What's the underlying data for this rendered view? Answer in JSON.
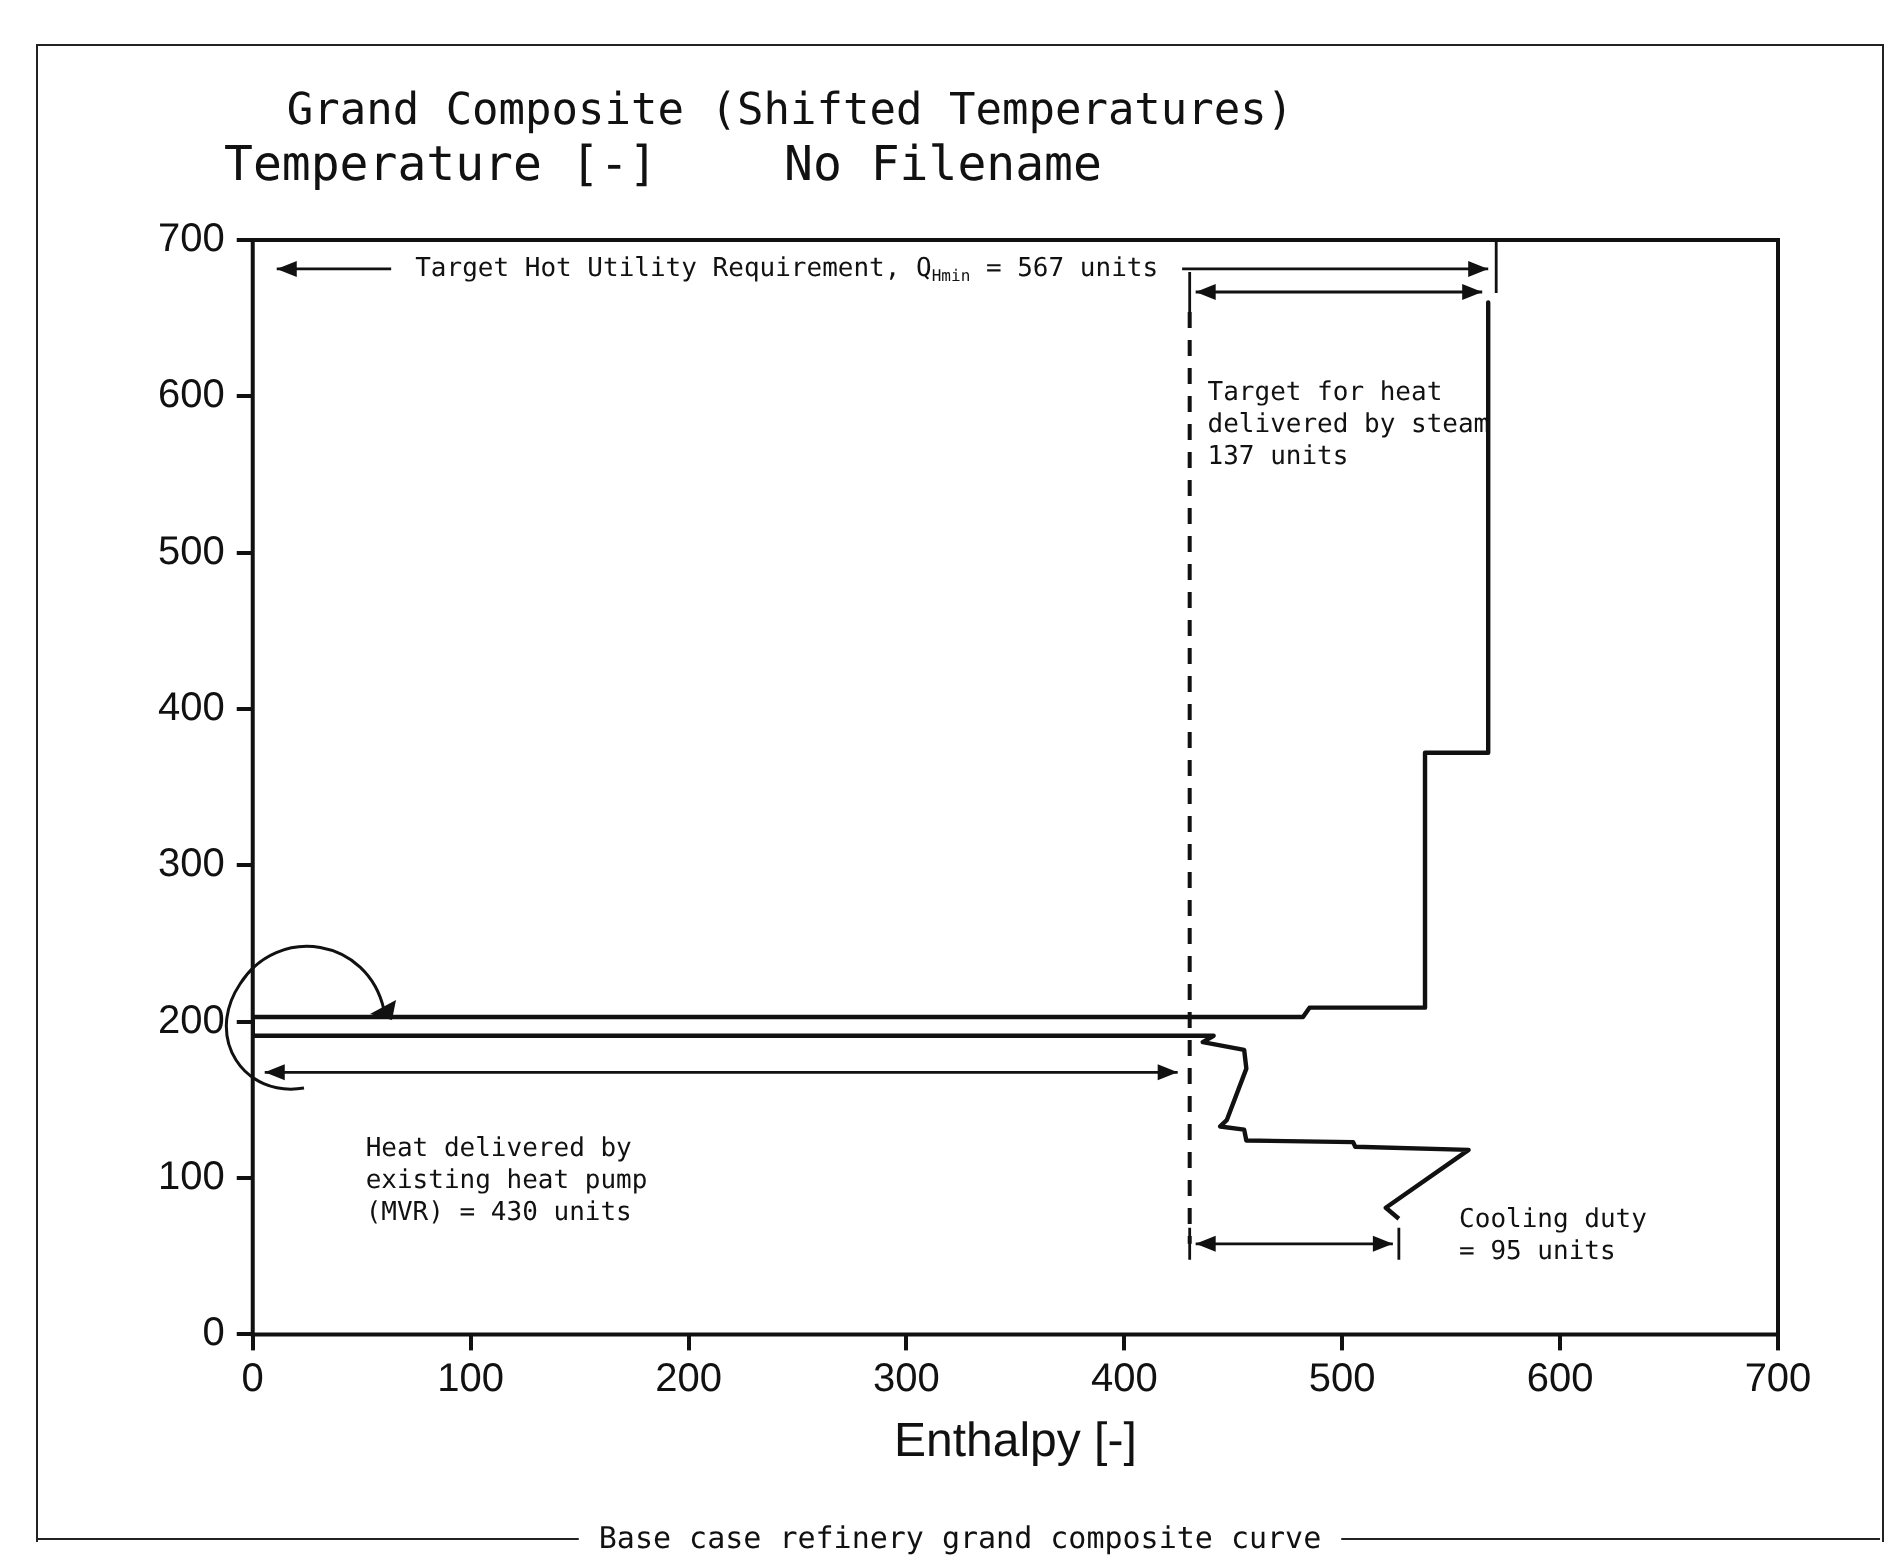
{
  "chart_data": {
    "type": "line",
    "title": "Grand Composite (Shifted Temperatures)",
    "subtitle": "No Filename",
    "xlabel": "Enthalpy [-]",
    "ylabel": "Temperature [-]",
    "xlim": [
      0,
      700
    ],
    "xticks": [
      0,
      100,
      200,
      300,
      400,
      500,
      600,
      700
    ],
    "ylim": [
      0,
      700
    ],
    "yticks": [
      0,
      100,
      200,
      300,
      400,
      500,
      600,
      700
    ],
    "marker": "none",
    "line_style": "solid",
    "series": [
      {
        "color": "#111111",
        "x": [
          567,
          567,
          538,
          538,
          485,
          482,
          0,
          0,
          441,
          436,
          455,
          456,
          447,
          444,
          455,
          456,
          505,
          506,
          558,
          520,
          526
        ],
        "values": [
          660,
          372,
          372,
          209,
          209,
          203,
          203,
          191,
          191,
          187,
          182,
          170,
          137,
          133,
          131,
          124,
          123,
          120,
          118,
          81,
          74
        ]
      }
    ],
    "ref_lines": [
      {
        "axis": "x",
        "value": 430,
        "label": null,
        "line_style": "dashed",
        "color": "#111111"
      }
    ],
    "annotations": [
      "Target Hot Utility Requirement, Q$_{Hmin}$ = 567 units",
      "Target for heat\ndelivered by steam\n137 units",
      "Heat delivered by\nexisting heat pump\n(MVR) = 430 units",
      "Cooling duty\n= 95 units",
      "Base case refinery grand composite curve"
    ]
  }
}
